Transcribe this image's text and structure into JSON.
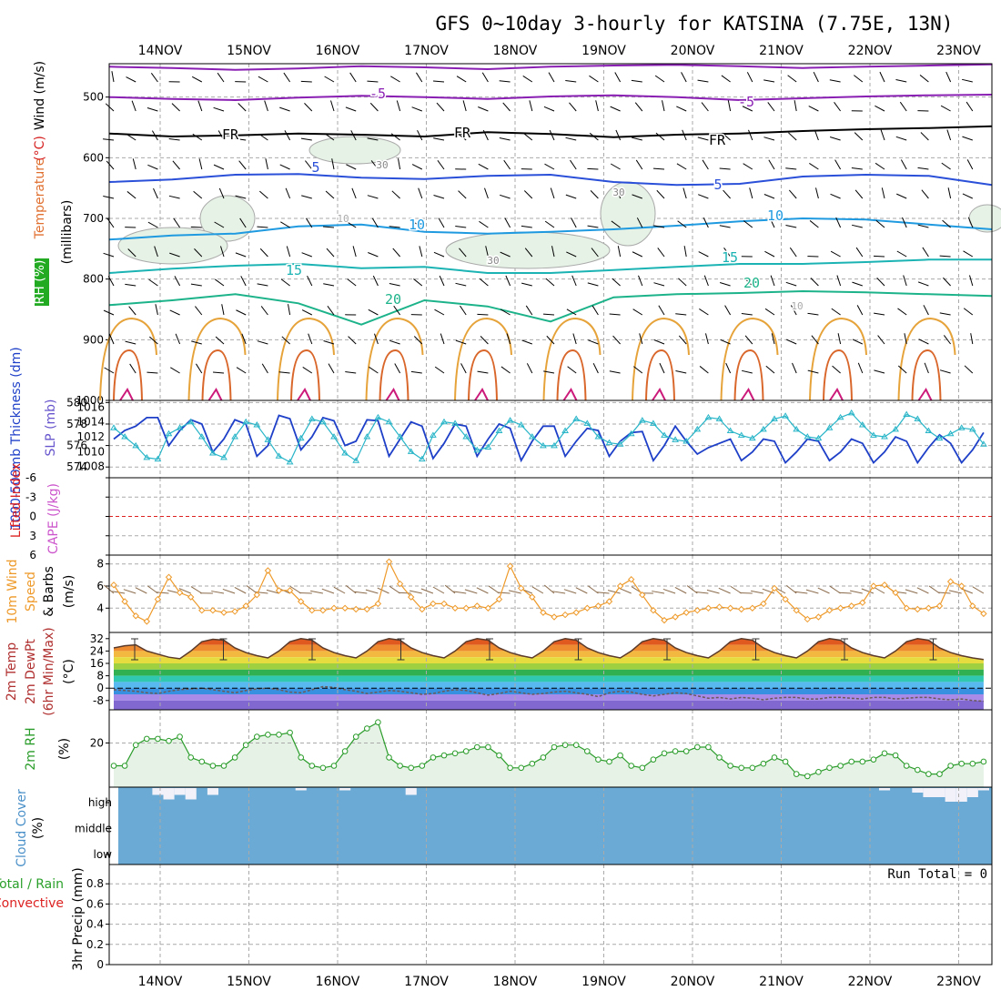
{
  "title": "GFS 0~10day 3-hourly for KATSINA (7.75E, 13N)",
  "colors": {
    "grid": "#aaaaaa",
    "purple": "#8a1fb3",
    "black": "#000000",
    "blue": "#2a4fd8",
    "lightblue": "#1f9ae0",
    "teal": "#1bb3b3",
    "green": "#1db38a",
    "orange": "#e6a33a",
    "darkorange": "#d9662a",
    "magenta": "#cc1a7a",
    "rhgreen": "#e6f2e6",
    "rhline": "#2a9c2a",
    "thicknessline": "#1e3fc8",
    "slpline": "#28b5c8",
    "windline": "#ee9a2a",
    "cloud": "#6aaad5",
    "cloudgap": "#f2f0f8",
    "liline": "#dd2222"
  },
  "chart_data": [
    {
      "panel": "upper-air",
      "type": "contour",
      "ylabel_parts": [
        "RH (%)",
        "Temperature",
        "(°C)",
        "Wind (m/s)"
      ],
      "ylabel2": "(millibars)",
      "yticks": [
        500,
        600,
        700,
        800,
        900,
        1000
      ],
      "ylim": [
        1000,
        445
      ],
      "dates": [
        "14NOV",
        "15NOV",
        "16NOV",
        "17NOV",
        "18NOV",
        "19NOV",
        "20NOV",
        "21NOV",
        "22NOV",
        "23NOV"
      ],
      "contour_labels": [
        "-5",
        "-5",
        "FR",
        "FR",
        "FR",
        "5",
        "5",
        "10",
        "10",
        "15",
        "15",
        "20",
        "20",
        "30",
        "30",
        "30",
        "10",
        "10"
      ],
      "isotherms": [
        {
          "label": "-5",
          "levels": [
            450,
            452,
            455,
            453,
            449,
            451,
            454,
            450,
            448,
            447,
            449,
            452,
            450,
            448,
            446
          ]
        },
        {
          "label": "-5b",
          "levels": [
            500,
            503,
            505,
            501,
            498,
            500,
            503,
            499,
            497,
            500,
            505,
            502,
            499,
            497,
            496
          ]
        },
        {
          "label": "FR",
          "levels": [
            560,
            565,
            563,
            560,
            562,
            565,
            558,
            561,
            566,
            562,
            560,
            556,
            553,
            551,
            548
          ]
        },
        {
          "label": "5",
          "levels": [
            640,
            636,
            628,
            627,
            633,
            635,
            630,
            628,
            640,
            645,
            643,
            631,
            628,
            630,
            645
          ]
        },
        {
          "label": "10",
          "levels": [
            735,
            728,
            725,
            713,
            710,
            722,
            725,
            722,
            718,
            712,
            705,
            700,
            702,
            710,
            718
          ]
        },
        {
          "label": "15",
          "levels": [
            790,
            783,
            778,
            775,
            782,
            780,
            790,
            790,
            785,
            780,
            775,
            775,
            772,
            768,
            768
          ]
        },
        {
          "label": "20",
          "levels": [
            843,
            835,
            825,
            840,
            875,
            835,
            845,
            870,
            830,
            825,
            823,
            820,
            822,
            825,
            828
          ]
        }
      ]
    },
    {
      "panel": "thickness-slp",
      "type": "line",
      "ylabel_left": "1000-500mb Thickness (dm)",
      "ylabel_right": "SLP (mb)",
      "yticks_left": [
        574,
        576,
        578,
        580
      ],
      "yticks_right": [
        1008,
        1010,
        1012,
        1014,
        1016
      ],
      "series": [
        {
          "name": "Thickness",
          "values": [
            576.6,
            577.4,
            577.8,
            578.6,
            578.6,
            576.0,
            577.4,
            578.4,
            578.0,
            575.4,
            576.6,
            578.4,
            578.0,
            575.0,
            576.0,
            578.8,
            578.5,
            575.6,
            576.8,
            578.6,
            578.3,
            576.0,
            576.4,
            578.4,
            578.3,
            575.0,
            576.6,
            578.2,
            577.8,
            574.8,
            576.2,
            578.0,
            577.8,
            575.0,
            576.6,
            578.0,
            577.6,
            574.6,
            576.4,
            577.8,
            577.8,
            575.0,
            576.4,
            577.6,
            577.4,
            575.0,
            576.4,
            577.2,
            577.3,
            574.6,
            576.0,
            577.8,
            576.4,
            575.2,
            575.8,
            576.2,
            576.6,
            574.6,
            575.4,
            576.6,
            576.4,
            574.4,
            575.4,
            576.6,
            576.4,
            574.6,
            575.4,
            576.6,
            576.2,
            574.4,
            575.4,
            576.8,
            576.4,
            574.4,
            575.8,
            577.0,
            576.2,
            574.4,
            575.6,
            577.2
          ]
        },
        {
          "name": "SLP",
          "values": [
            1013.2,
            1012.0,
            1010.8,
            1009.2,
            1009.0,
            1012.4,
            1013.2,
            1014.0,
            1012.0,
            1009.8,
            1009.2,
            1012.0,
            1014.0,
            1013.6,
            1011.6,
            1009.4,
            1008.6,
            1011.8,
            1014.4,
            1014.0,
            1012.0,
            1009.8,
            1008.8,
            1012.0,
            1014.6,
            1014.0,
            1012.0,
            1010.0,
            1009.0,
            1012.2,
            1014.0,
            1013.8,
            1012.0,
            1010.2,
            1010.6,
            1012.8,
            1014.2,
            1013.6,
            1012.0,
            1010.8,
            1010.8,
            1012.8,
            1014.4,
            1013.8,
            1012.0,
            1011.2,
            1011.0,
            1012.4,
            1014.2,
            1013.8,
            1012.2,
            1011.6,
            1011.4,
            1013.0,
            1014.6,
            1014.4,
            1012.8,
            1012.2,
            1011.8,
            1013.0,
            1014.4,
            1014.8,
            1013.0,
            1012.0,
            1011.8,
            1013.2,
            1014.6,
            1015.2,
            1013.6,
            1012.2,
            1012.0,
            1013.0,
            1015.0,
            1014.4,
            1012.8,
            1011.8,
            1012.4,
            1013.2,
            1013.0,
            1011.0
          ]
        }
      ]
    },
    {
      "panel": "stability",
      "type": "line",
      "ylabel_left": "Lifted Index",
      "ylabel_right": "CAPE (J/kg)",
      "yticks": [
        "-6",
        "-3",
        "0",
        "3",
        "6"
      ],
      "series": [
        {
          "name": "Lifted Index",
          "values": []
        },
        {
          "name": "CAPE",
          "values": []
        }
      ]
    },
    {
      "panel": "wind",
      "type": "line",
      "ylabel": "10m Wind Speed & Barbs (m/s)",
      "yticks": [
        4,
        6,
        8
      ],
      "series": [
        {
          "name": "10m Wind Speed",
          "values": [
            6.1,
            4.6,
            3.3,
            2.8,
            4.8,
            6.8,
            5.4,
            5.0,
            3.8,
            3.8,
            3.6,
            3.7,
            4.2,
            5.2,
            7.4,
            5.6,
            5.6,
            4.6,
            3.8,
            3.8,
            4.0,
            4.0,
            3.9,
            3.9,
            4.4,
            8.2,
            6.2,
            5.0,
            3.9,
            4.4,
            4.4,
            4.0,
            4.0,
            4.2,
            4.0,
            4.8,
            7.8,
            5.8,
            5.0,
            3.6,
            3.2,
            3.4,
            3.6,
            4.0,
            4.2,
            4.6,
            6.0,
            6.6,
            5.2,
            3.8,
            2.9,
            3.2,
            3.6,
            3.8,
            4.0,
            4.1,
            4.0,
            3.9,
            4.0,
            4.4,
            5.8,
            4.8,
            3.8,
            3.0,
            3.2,
            3.8,
            4.0,
            4.2,
            4.5,
            6.0,
            6.1,
            5.4,
            4.0,
            3.9,
            4.0,
            4.2,
            6.4,
            6.0,
            4.2,
            3.5
          ]
        }
      ]
    },
    {
      "panel": "temperature",
      "type": "area",
      "ylabel_parts": [
        "2m Temp",
        "2m DewPt",
        "(6hr Min/Max)"
      ],
      "ylabel_unit": "(°C)",
      "yticks": [
        "32",
        "24",
        "16",
        "8",
        "0",
        "-8"
      ],
      "series": [
        {
          "name": "2m Temp",
          "values": [
            26.0,
            27.4,
            28.0,
            24.0,
            22.0,
            20.0,
            19.0,
            24.0,
            30.0,
            31.6,
            31.0,
            26.0,
            23.0,
            21.0,
            19.5,
            24.0,
            30.0,
            32.0,
            31.0,
            26.0,
            23.0,
            21.0,
            19.5,
            24.0,
            30.0,
            32.0,
            31.0,
            26.0,
            23.0,
            21.0,
            19.5,
            24.0,
            30.0,
            32.0,
            31.0,
            26.0,
            23.0,
            21.0,
            19.5,
            24.0,
            30.0,
            32.0,
            31.0,
            26.0,
            23.0,
            21.0,
            19.5,
            24.0,
            30.0,
            32.0,
            31.0,
            26.0,
            23.0,
            21.0,
            19.5,
            24.0,
            30.0,
            32.0,
            31.0,
            26.0,
            23.0,
            21.0,
            19.5,
            24.0,
            30.0,
            32.0,
            31.0,
            26.0,
            23.0,
            21.0,
            19.5,
            24.0,
            30.0,
            32.0,
            31.0,
            26.0,
            23.0,
            21.0,
            19.5,
            18.5
          ]
        },
        {
          "name": "2m DewPt",
          "values": [
            -1.0,
            -1.5,
            -2.0,
            -3.0,
            -3.5,
            -2.0,
            -1.0,
            -0.5,
            0.0,
            -1.0,
            -2.0,
            -3.0,
            -1.5,
            -0.5,
            0.0,
            -1.0,
            -2.5,
            -3.0,
            -1.0,
            1.0,
            0.5,
            -1.0,
            -2.0,
            -3.5,
            -2.5,
            -1.5,
            -2.0,
            -3.0,
            -4.0,
            -3.5,
            -2.0,
            -1.0,
            -1.5,
            -3.0,
            -4.5,
            -3.5,
            -2.0,
            -3.0,
            -4.0,
            -3.5,
            -2.5,
            -2.0,
            -3.0,
            -4.0,
            -5.5,
            -3.0,
            -2.0,
            -2.5,
            -4.0,
            -5.0,
            -4.0,
            -3.0,
            -3.5,
            -5.0,
            -6.5,
            -6.0,
            -7.0,
            -6.0,
            -6.5,
            -7.5,
            -6.5,
            -6.0,
            -6.0,
            -7.0,
            -7.0,
            -6.0,
            -6.0,
            -6.5,
            -7.0,
            -6.0,
            -6.0,
            -7.0,
            -6.5,
            -6.0,
            -6.0,
            -7.0,
            -7.5,
            -7.0,
            -8.0,
            -8.5
          ]
        }
      ]
    },
    {
      "panel": "rh",
      "type": "area",
      "ylabel": "2m RH",
      "ylabel_unit": "(%)",
      "yticks": [
        20
      ],
      "series": [
        {
          "name": "2m RH",
          "values": [
            9,
            9,
            19,
            22,
            22,
            21,
            23,
            13,
            11,
            9,
            9,
            13,
            19,
            23,
            24,
            24,
            25,
            13,
            9,
            8,
            9,
            16,
            23,
            27,
            30,
            13,
            9,
            8,
            9,
            13,
            14,
            15,
            16,
            18,
            18,
            14,
            8,
            8,
            10,
            13,
            18,
            19,
            19,
            16,
            12,
            11,
            14,
            9,
            8,
            12,
            15,
            16,
            16,
            18,
            18,
            13,
            9,
            8,
            8,
            10,
            13,
            11,
            5,
            4,
            6,
            8,
            9,
            11,
            11,
            12,
            15,
            14,
            9,
            7,
            5,
            5,
            9,
            10,
            10,
            11
          ]
        }
      ]
    },
    {
      "panel": "cloud",
      "type": "bar",
      "ylabel": "Cloud Cover",
      "ylabel_unit": "(%)",
      "yticks": [
        "high",
        "middle",
        "low"
      ],
      "series": [
        {
          "name": "High cloud gap (%)",
          "values": [
            0,
            0,
            0,
            0,
            30,
            50,
            30,
            50,
            0,
            30,
            0,
            0,
            0,
            0,
            0,
            0,
            0,
            10,
            0,
            0,
            0,
            10,
            0,
            0,
            0,
            0,
            0,
            30,
            0,
            0,
            0,
            0,
            0,
            0,
            0,
            0,
            0,
            0,
            0,
            0,
            0,
            0,
            0,
            0,
            0,
            0,
            0,
            0,
            0,
            0,
            0,
            0,
            0,
            0,
            0,
            0,
            0,
            0,
            0,
            0,
            0,
            0,
            0,
            0,
            0,
            0,
            0,
            0,
            0,
            0,
            10,
            0,
            0,
            20,
            40,
            40,
            60,
            60,
            40,
            10
          ]
        }
      ]
    },
    {
      "panel": "precip",
      "type": "bar",
      "ylabel": "3hr Precip (mm)",
      "ylabel_left": "Total / Rain",
      "ylabel_left2": "Convective",
      "yticks": [
        "0",
        "0.2",
        "0.4",
        "0.6",
        "0.8"
      ],
      "run_total": "Run Total = 0",
      "series": [
        {
          "name": "Precip",
          "values": []
        }
      ]
    }
  ]
}
